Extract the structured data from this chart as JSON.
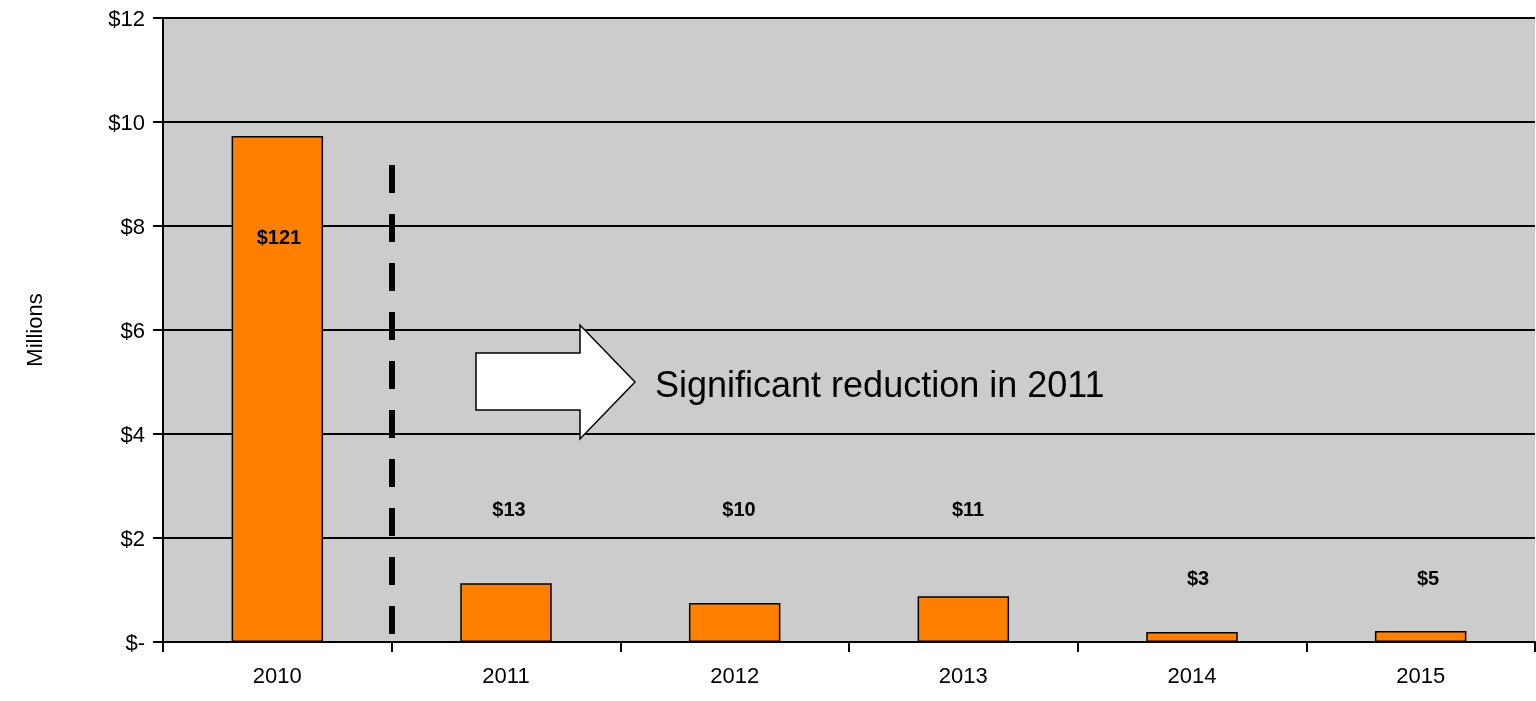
{
  "chart_data": {
    "type": "bar",
    "categories": [
      "2010",
      "2011",
      "2012",
      "2013",
      "2014",
      "2015"
    ],
    "values": [
      9.73,
      1.13,
      0.75,
      0.88,
      0.19,
      0.21
    ],
    "color": "#ff7f00",
    "ylabel": "Millions",
    "ylim": [
      0,
      12
    ],
    "yticks": [
      {
        "value": 0,
        "label": "$-"
      },
      {
        "value": 2,
        "label": "$2"
      },
      {
        "value": 4,
        "label": "$4"
      },
      {
        "value": 6,
        "label": "$6"
      },
      {
        "value": 8,
        "label": "$8"
      },
      {
        "value": 10,
        "label": "$10"
      },
      {
        "value": 12,
        "label": "$12"
      }
    ],
    "grid": "y",
    "annotations": [
      "Significant reduction in 2011",
      "$121",
      "$13",
      "$10",
      "$11",
      "$3",
      "$5"
    ]
  }
}
